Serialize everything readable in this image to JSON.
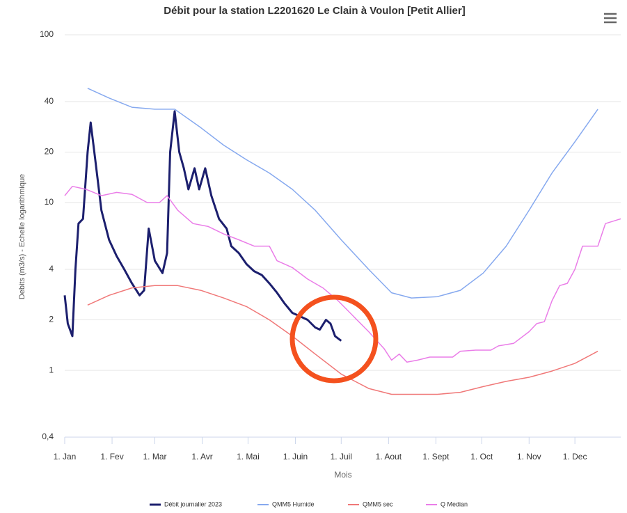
{
  "chart_data": {
    "type": "line",
    "title": "Débit pour la station L2201620 Le Clain à Voulon [Petit Allier]",
    "xlabel": "Mois",
    "ylabel": "Debits (m3/s) - Echelle logarithmique",
    "log_y": true,
    "grid": true,
    "legend": "bottom",
    "xlim": [
      1,
      365
    ],
    "xticks": [
      {
        "value": 1,
        "label": "1. Jan"
      },
      {
        "value": 32,
        "label": "1. Fev"
      },
      {
        "value": 60,
        "label": "1. Mar"
      },
      {
        "value": 91,
        "label": "1. Avr"
      },
      {
        "value": 121,
        "label": "1. Mai"
      },
      {
        "value": 152,
        "label": "1. Juin"
      },
      {
        "value": 182,
        "label": "1. Juil"
      },
      {
        "value": 213,
        "label": "1. Aout"
      },
      {
        "value": 244,
        "label": "1. Sept"
      },
      {
        "value": 274,
        "label": "1. Oct"
      },
      {
        "value": 305,
        "label": "1. Nov"
      },
      {
        "value": 335,
        "label": "1. Dec"
      }
    ],
    "ylim": [
      0.4,
      100
    ],
    "yticks": [
      100,
      40,
      20,
      10,
      4,
      2,
      1,
      {
        "value": 0.4,
        "label": "0,4"
      }
    ],
    "series": [
      {
        "name": "Débit journalier 2023",
        "color": "#1c1f6e",
        "width": 3,
        "x": [
          1,
          3,
          6,
          8,
          10,
          13,
          16,
          18,
          21,
          25,
          30,
          35,
          40,
          45,
          50,
          53,
          56,
          60,
          65,
          68,
          70,
          73,
          76,
          79,
          82,
          86,
          89,
          93,
          97,
          102,
          107,
          110,
          115,
          120,
          125,
          130,
          135,
          140,
          145,
          150,
          155,
          160,
          165,
          168,
          172,
          175,
          178,
          182
        ],
        "values": [
          2.8,
          1.9,
          1.6,
          4,
          7.5,
          8,
          20,
          30,
          18,
          9,
          6,
          4.8,
          4,
          3.3,
          2.8,
          3,
          7,
          4.5,
          3.8,
          5,
          20,
          35,
          20,
          16,
          12,
          16,
          12,
          16,
          11,
          8,
          7,
          5.5,
          5,
          4.3,
          3.9,
          3.7,
          3.3,
          2.9,
          2.5,
          2.2,
          2.1,
          2.0,
          1.8,
          1.75,
          2.0,
          1.9,
          1.6,
          1.5
        ]
      },
      {
        "name": "QMM5 Humide",
        "color": "#86a9ef",
        "width": 1.5,
        "x": [
          16,
          30,
          45,
          60,
          73,
          90,
          105,
          120,
          135,
          150,
          165,
          182,
          200,
          215,
          228,
          245,
          260,
          275,
          290,
          305,
          320,
          335,
          350
        ],
        "values": [
          48,
          42,
          37,
          36,
          36,
          28,
          22,
          18,
          15,
          12,
          9,
          6,
          4,
          2.9,
          2.7,
          2.75,
          3.0,
          3.8,
          5.5,
          9,
          15,
          23,
          36
        ]
      },
      {
        "name": "QMM5 sec",
        "color": "#f07878",
        "width": 1.5,
        "x": [
          16,
          30,
          45,
          60,
          75,
          90,
          105,
          120,
          135,
          150,
          165,
          182,
          200,
          215,
          245,
          260,
          275,
          290,
          305,
          320,
          335,
          350
        ],
        "values": [
          2.45,
          2.8,
          3.1,
          3.2,
          3.2,
          3.0,
          2.7,
          2.4,
          2.0,
          1.6,
          1.25,
          0.95,
          0.78,
          0.72,
          0.72,
          0.74,
          0.8,
          0.86,
          0.91,
          0.99,
          1.1,
          1.3
        ]
      },
      {
        "name": "Q Median",
        "color": "#ea7de8",
        "width": 1.5,
        "x": [
          1,
          6,
          15,
          25,
          35,
          45,
          55,
          63,
          68,
          75,
          85,
          95,
          105,
          115,
          125,
          135,
          140,
          150,
          160,
          170,
          180,
          190,
          200,
          210,
          215,
          220,
          225,
          232,
          240,
          255,
          260,
          270,
          280,
          285,
          295,
          305,
          310,
          315,
          320,
          325,
          330,
          335,
          340,
          350,
          355,
          365
        ],
        "values": [
          11,
          12.5,
          12,
          11,
          11.5,
          11.2,
          10,
          10,
          11,
          9,
          7.5,
          7.2,
          6.5,
          6,
          5.5,
          5.5,
          4.5,
          4.1,
          3.5,
          3.1,
          2.6,
          2.1,
          1.7,
          1.35,
          1.15,
          1.25,
          1.12,
          1.15,
          1.2,
          1.2,
          1.3,
          1.32,
          1.32,
          1.4,
          1.45,
          1.7,
          1.9,
          1.95,
          2.6,
          3.2,
          3.3,
          4,
          5.5,
          5.5,
          7.5,
          8
        ]
      }
    ]
  }
}
